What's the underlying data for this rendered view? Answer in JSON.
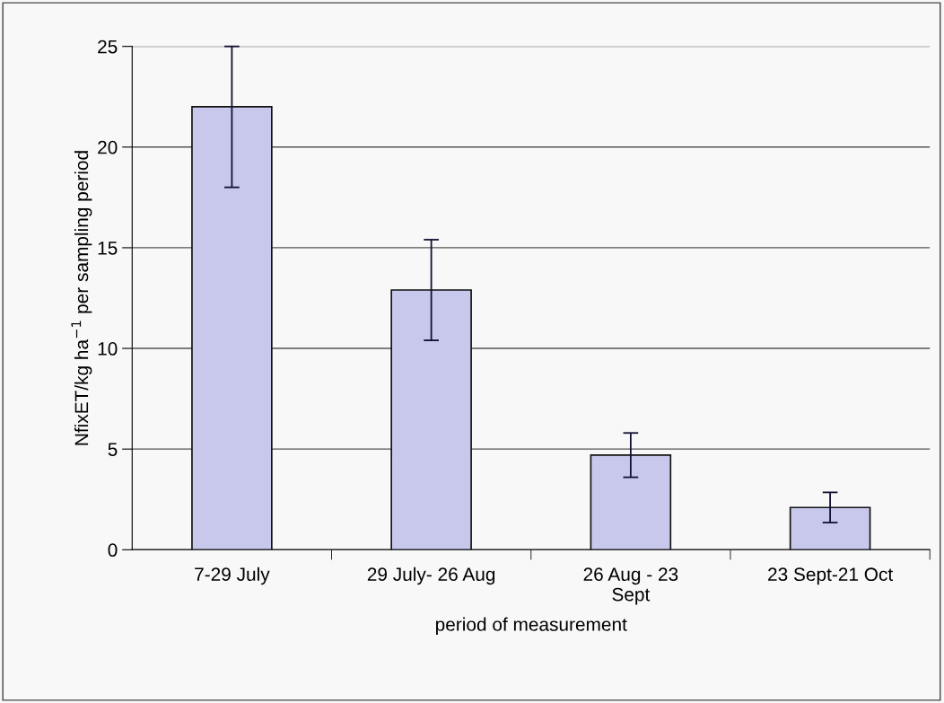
{
  "chart_data": {
    "type": "bar",
    "xlabel": "period of measurement",
    "ylabel": "NfixET/kg ha$^{−1}$ per sampling period",
    "categories": [
      "7-29 July",
      "29 July- 26 Aug",
      "26 Aug - 23\nSept",
      "23 Sept-21 Oct"
    ],
    "values": [
      22.0,
      12.9,
      4.7,
      2.1
    ],
    "errors": [
      [
        18.0,
        25.0
      ],
      [
        10.4,
        15.4
      ],
      [
        3.6,
        5.8
      ],
      [
        1.35,
        2.85
      ]
    ],
    "color": "#c8c8ec",
    "ylim": [
      0,
      25
    ],
    "yticks": [
      0,
      5,
      10,
      15,
      20,
      25
    ],
    "grid": "y"
  }
}
